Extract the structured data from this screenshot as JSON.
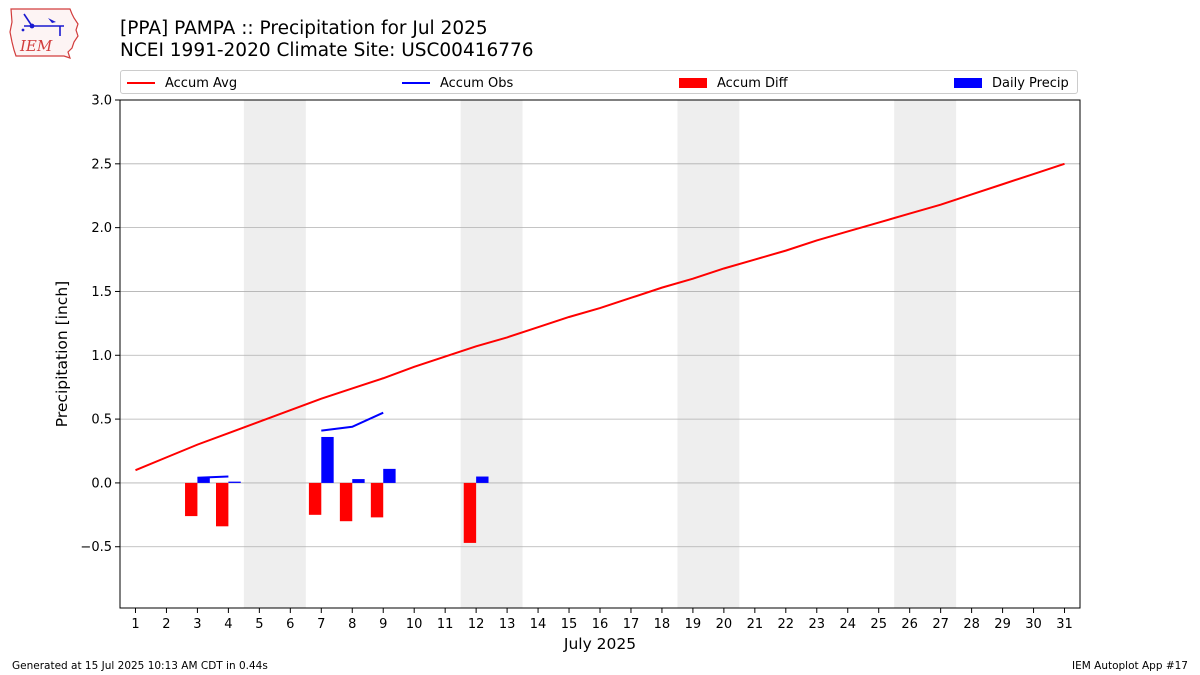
{
  "logo": {
    "text": "IEM",
    "icon": "iowa-state-outline-weather-icon"
  },
  "chart_data": {
    "type": "bar+line",
    "title": "[PPA] PAMPA :: Precipitation for Jul 2025",
    "subtitle": "NCEI 1991-2020 Climate Site: USC00416776",
    "xlabel": "July 2025",
    "ylabel": "Precipitation [inch]",
    "xlim": [
      0.5,
      31.5
    ],
    "ylim": [
      -0.98,
      3.0
    ],
    "yticks": [
      -0.5,
      0.0,
      0.5,
      1.0,
      1.5,
      2.0,
      2.5,
      3.0
    ],
    "ytick_labels": [
      "−0.5",
      "0.0",
      "0.5",
      "1.0",
      "1.5",
      "2.0",
      "2.5",
      "3.0"
    ],
    "x": [
      1,
      2,
      3,
      4,
      5,
      6,
      7,
      8,
      9,
      10,
      11,
      12,
      13,
      14,
      15,
      16,
      17,
      18,
      19,
      20,
      21,
      22,
      23,
      24,
      25,
      26,
      27,
      28,
      29,
      30,
      31
    ],
    "weekends": [
      [
        5,
        6
      ],
      [
        12,
        13
      ],
      [
        19,
        20
      ],
      [
        26,
        27
      ]
    ],
    "grid": "horizontal",
    "legend_position": "top",
    "series": [
      {
        "name": "Accum Avg",
        "kind": "line",
        "color": "#ff0000",
        "x": [
          1,
          2,
          3,
          4,
          5,
          6,
          7,
          8,
          9,
          10,
          11,
          12,
          13,
          14,
          15,
          16,
          17,
          18,
          19,
          20,
          21,
          22,
          23,
          24,
          25,
          26,
          27,
          28,
          29,
          30,
          31
        ],
        "values": [
          0.1,
          0.2,
          0.3,
          0.39,
          0.48,
          0.57,
          0.66,
          0.74,
          0.82,
          0.91,
          0.99,
          1.07,
          1.14,
          1.22,
          1.3,
          1.37,
          1.45,
          1.53,
          1.6,
          1.68,
          1.75,
          1.82,
          1.9,
          1.97,
          2.04,
          2.11,
          2.18,
          2.26,
          2.34,
          2.42,
          2.5
        ]
      },
      {
        "name": "Accum Obs",
        "kind": "line",
        "color": "#0000ff",
        "x": [
          3,
          4,
          7,
          8,
          9
        ],
        "values": [
          0.04,
          0.05,
          0.41,
          0.44,
          0.55
        ]
      },
      {
        "name": "Accum Diff",
        "kind": "bar",
        "color": "#ff0000",
        "x": [
          3,
          4,
          7,
          8,
          9,
          12
        ],
        "values": [
          -0.26,
          -0.34,
          -0.25,
          -0.3,
          -0.27,
          -0.47
        ]
      },
      {
        "name": "Daily Precip",
        "kind": "bar",
        "color": "#0000ff",
        "x": [
          3,
          4,
          7,
          8,
          9,
          12
        ],
        "values": [
          0.04,
          0.01,
          0.36,
          0.03,
          0.11,
          0.05
        ]
      }
    ]
  },
  "footer": {
    "generated": "Generated at 15 Jul 2025 10:13 AM CDT in 0.44s",
    "app": "IEM Autoplot App #17"
  }
}
